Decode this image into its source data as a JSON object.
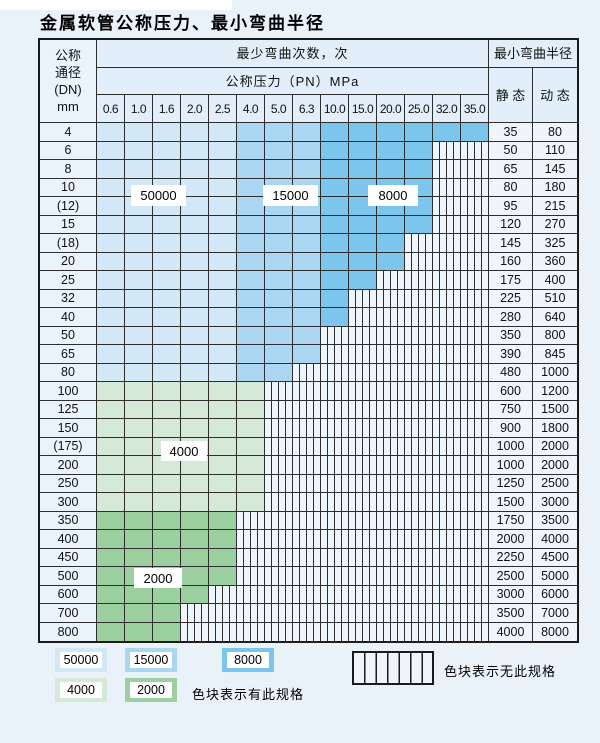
{
  "page_title": "金属软管公称压力、最小弯曲半径",
  "colors": {
    "cycles_50000": "#d2e8f6",
    "cycles_15000": "#abd6f1",
    "cycles_8000": "#7cc5ec",
    "cycles_4000": "#d6e9d6",
    "cycles_2000": "#9cd0a1",
    "no_spec_cell_bg": "#eef5fb",
    "grid_line": "#2e2e2e",
    "page_bg": "#eaf2f9"
  },
  "table": {
    "corner_header_lines": [
      "公称",
      "通径",
      "(DN)",
      "mm"
    ],
    "bend_cycles_header": "最少弯曲次数，次",
    "pressure_header": "公称压力（PN）MPa",
    "pressure_columns": [
      "0.6",
      "1.0",
      "1.6",
      "2.0",
      "2.5",
      "4.0",
      "5.0",
      "6.3",
      "10.0",
      "15.0",
      "20.0",
      "25.0",
      "32.0",
      "35.0"
    ],
    "radius_header": "最小弯曲半径",
    "static_header": "静 态",
    "dynamic_header": "动 态",
    "blue_column_zones": [
      "cycles_50000",
      "cycles_50000",
      "cycles_50000",
      "cycles_50000",
      "cycles_50000",
      "cycles_15000",
      "cycles_15000",
      "cycles_15000",
      "cycles_8000",
      "cycles_8000",
      "cycles_8000",
      "cycles_8000",
      "cycles_8000",
      "cycles_8000"
    ],
    "rows": [
      {
        "dn": "4",
        "colored_cols": 14,
        "zone": "blue",
        "static": "35",
        "dynamic": "80"
      },
      {
        "dn": "6",
        "colored_cols": 12,
        "zone": "blue",
        "static": "50",
        "dynamic": "110"
      },
      {
        "dn": "8",
        "colored_cols": 12,
        "zone": "blue",
        "static": "65",
        "dynamic": "145"
      },
      {
        "dn": "10",
        "colored_cols": 12,
        "zone": "blue",
        "static": "80",
        "dynamic": "180"
      },
      {
        "dn": "(12)",
        "colored_cols": 12,
        "zone": "blue",
        "static": "95",
        "dynamic": "215"
      },
      {
        "dn": "15",
        "colored_cols": 12,
        "zone": "blue",
        "static": "120",
        "dynamic": "270"
      },
      {
        "dn": "(18)",
        "colored_cols": 11,
        "zone": "blue",
        "static": "145",
        "dynamic": "325"
      },
      {
        "dn": "20",
        "colored_cols": 11,
        "zone": "blue",
        "static": "160",
        "dynamic": "360"
      },
      {
        "dn": "25",
        "colored_cols": 10,
        "zone": "blue",
        "static": "175",
        "dynamic": "400"
      },
      {
        "dn": "32",
        "colored_cols": 9,
        "zone": "blue",
        "static": "225",
        "dynamic": "510"
      },
      {
        "dn": "40",
        "colored_cols": 9,
        "zone": "blue",
        "static": "280",
        "dynamic": "640"
      },
      {
        "dn": "50",
        "colored_cols": 8,
        "zone": "blue",
        "static": "350",
        "dynamic": "800"
      },
      {
        "dn": "65",
        "colored_cols": 8,
        "zone": "blue",
        "static": "390",
        "dynamic": "845"
      },
      {
        "dn": "80",
        "colored_cols": 7,
        "zone": "blue",
        "static": "480",
        "dynamic": "1000"
      },
      {
        "dn": "100",
        "colored_cols": 6,
        "zone": "green_light",
        "static": "600",
        "dynamic": "1200"
      },
      {
        "dn": "125",
        "colored_cols": 6,
        "zone": "green_light",
        "static": "750",
        "dynamic": "1500"
      },
      {
        "dn": "150",
        "colored_cols": 6,
        "zone": "green_light",
        "static": "900",
        "dynamic": "1800"
      },
      {
        "dn": "(175)",
        "colored_cols": 6,
        "zone": "green_light",
        "static": "1000",
        "dynamic": "2000"
      },
      {
        "dn": "200",
        "colored_cols": 6,
        "zone": "green_light",
        "static": "1000",
        "dynamic": "2000"
      },
      {
        "dn": "250",
        "colored_cols": 6,
        "zone": "green_light",
        "static": "1250",
        "dynamic": "2500"
      },
      {
        "dn": "300",
        "colored_cols": 6,
        "zone": "green_light",
        "static": "1500",
        "dynamic": "3000"
      },
      {
        "dn": "350",
        "colored_cols": 5,
        "zone": "green_dark",
        "static": "1750",
        "dynamic": "3500"
      },
      {
        "dn": "400",
        "colored_cols": 5,
        "zone": "green_dark",
        "static": "2000",
        "dynamic": "4000"
      },
      {
        "dn": "450",
        "colored_cols": 5,
        "zone": "green_dark",
        "static": "2250",
        "dynamic": "4500"
      },
      {
        "dn": "500",
        "colored_cols": 5,
        "zone": "green_dark",
        "static": "2500",
        "dynamic": "5000"
      },
      {
        "dn": "600",
        "colored_cols": 4,
        "zone": "green_dark",
        "static": "3000",
        "dynamic": "6000"
      },
      {
        "dn": "700",
        "colored_cols": 3,
        "zone": "green_dark",
        "static": "3500",
        "dynamic": "7000"
      },
      {
        "dn": "800",
        "colored_cols": 3,
        "zone": "green_dark",
        "static": "4000",
        "dynamic": "8000"
      }
    ]
  },
  "overlays": {
    "l50000": "50000",
    "l15000": "15000",
    "l8000": "8000",
    "l4000": "4000",
    "l2000": "2000"
  },
  "legend": {
    "swatches": [
      {
        "label": "50000",
        "color": "cycles_50000"
      },
      {
        "label": "15000",
        "color": "cycles_15000"
      },
      {
        "label": "8000",
        "color": "cycles_8000"
      },
      {
        "label": "4000",
        "color": "cycles_4000"
      },
      {
        "label": "2000",
        "color": "cycles_2000"
      }
    ],
    "has_spec_text": "色块表示有此规格",
    "no_spec_text": "色块表示无此规格"
  }
}
